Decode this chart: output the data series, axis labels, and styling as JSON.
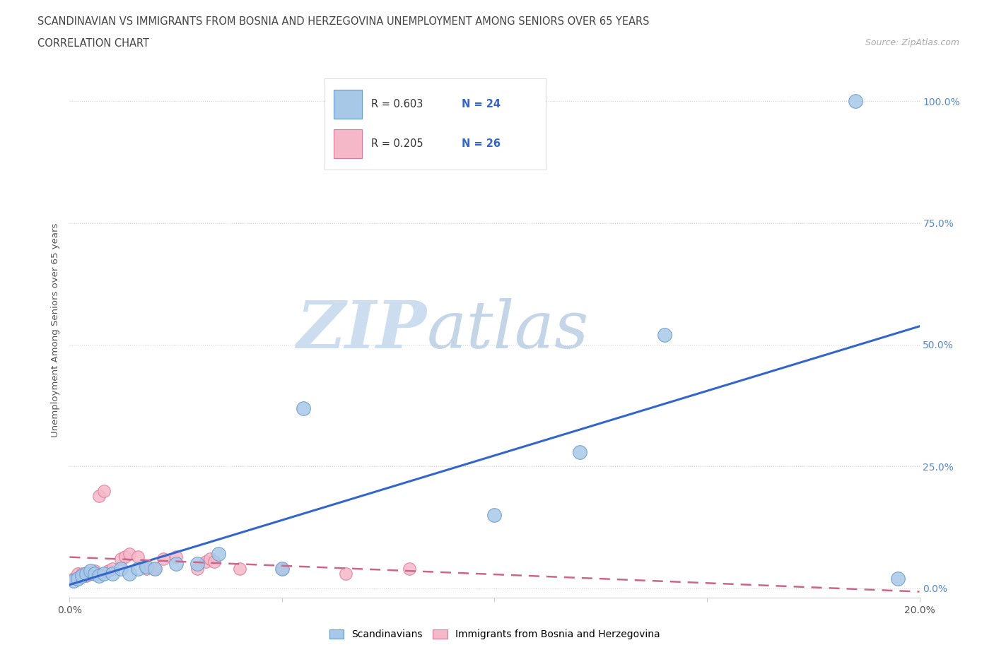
{
  "title_line1": "SCANDINAVIAN VS IMMIGRANTS FROM BOSNIA AND HERZEGOVINA UNEMPLOYMENT AMONG SENIORS OVER 65 YEARS",
  "title_line2": "CORRELATION CHART",
  "source": "Source: ZipAtlas.com",
  "ylabel": "Unemployment Among Seniors over 65 years",
  "xlim": [
    0.0,
    0.2
  ],
  "ylim": [
    -0.02,
    1.08
  ],
  "yticks": [
    0.0,
    0.25,
    0.5,
    0.75,
    1.0
  ],
  "ytick_labels": [
    "0.0%",
    "25.0%",
    "50.0%",
    "75.0%",
    "100.0%"
  ],
  "xticks": [
    0.0,
    0.05,
    0.1,
    0.15,
    0.2
  ],
  "xtick_labels": [
    "0.0%",
    "",
    "",
    "",
    "20.0%"
  ],
  "scandinavians_x": [
    0.001,
    0.002,
    0.003,
    0.004,
    0.005,
    0.006,
    0.007,
    0.008,
    0.01,
    0.012,
    0.014,
    0.016,
    0.018,
    0.02,
    0.025,
    0.03,
    0.035,
    0.05,
    0.055,
    0.1,
    0.12,
    0.14,
    0.185,
    0.195
  ],
  "scandinavians_y": [
    0.015,
    0.02,
    0.025,
    0.03,
    0.035,
    0.03,
    0.025,
    0.03,
    0.03,
    0.04,
    0.03,
    0.04,
    0.045,
    0.04,
    0.05,
    0.05,
    0.07,
    0.04,
    0.37,
    0.15,
    0.28,
    0.52,
    1.0,
    0.02
  ],
  "bosnia_x": [
    0.001,
    0.002,
    0.003,
    0.004,
    0.005,
    0.006,
    0.007,
    0.008,
    0.009,
    0.01,
    0.012,
    0.013,
    0.014,
    0.016,
    0.018,
    0.02,
    0.022,
    0.025,
    0.03,
    0.032,
    0.033,
    0.034,
    0.04,
    0.05,
    0.065,
    0.08
  ],
  "bosnia_y": [
    0.02,
    0.03,
    0.03,
    0.025,
    0.03,
    0.035,
    0.19,
    0.2,
    0.035,
    0.04,
    0.06,
    0.065,
    0.07,
    0.065,
    0.04,
    0.04,
    0.06,
    0.065,
    0.04,
    0.055,
    0.06,
    0.055,
    0.04,
    0.04,
    0.03,
    0.04
  ],
  "scand_color": "#a8c8e8",
  "scand_edge_color": "#6699cc",
  "bosnia_color": "#f5b8c8",
  "bosnia_edge_color": "#dd7799",
  "scand_R": "0.603",
  "scand_N": "24",
  "bosnia_R": "0.205",
  "bosnia_N": "26",
  "trend_scand_color": "#3366cc",
  "trend_bosnia_color": "#cc6688",
  "watermark_zip_color": "#c8d8ee",
  "watermark_atlas_color": "#b8cce0",
  "background_color": "#ffffff",
  "grid_color": "#cccccc",
  "legend_label_scand": "Scandinavians",
  "legend_label_bosnia": "Immigrants from Bosnia and Herzegovina"
}
